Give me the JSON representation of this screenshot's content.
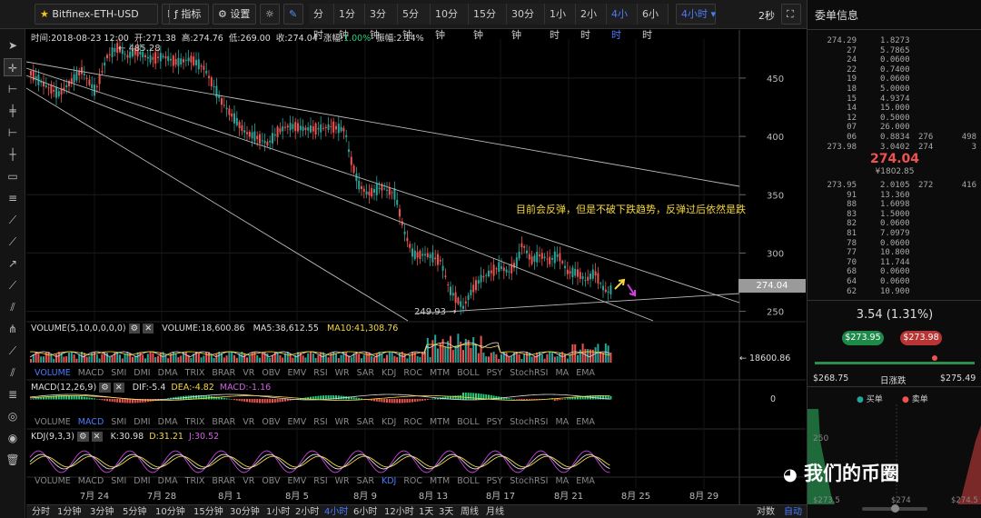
{
  "toolbar": {
    "symbol": "Bitfinex-ETH-USD",
    "indicators_label": "指标",
    "settings_label": "设置",
    "timeframes": [
      "分时",
      "1分钟",
      "3分钟",
      "5分钟",
      "10分钟",
      "15分钟",
      "30分钟",
      "1小时",
      "2小时",
      "4小时",
      "6小时"
    ],
    "active_timeframe": "4小时",
    "more_label": "4小时",
    "refresh_label": "2秒"
  },
  "info_line": {
    "time": "时间:2018-08-23 12:00",
    "open": "开:271.38",
    "high": "高:274.76",
    "low": "低:269.00",
    "close": "收:274.04",
    "change_label": "涨幅:",
    "change_value": "1.00%",
    "amplitude": "振幅:2.14%"
  },
  "chart_data": {
    "type": "candlestick",
    "y_ticks": [
      450,
      400,
      350,
      300,
      250
    ],
    "x_ticks": [
      "7月 24",
      "7月 28",
      "8月 1",
      "8月 5",
      "8月 9",
      "8月 13",
      "8月 17",
      "8月 21",
      "8月 25",
      "8月 29"
    ],
    "high_label": "485.28",
    "low_label": "249.93",
    "last_price_label": "274.04",
    "annotation": "目前会反弹，但是不破下跌趋势，反弹过后依然是跌"
  },
  "volume": {
    "title": "VOLUME(5,10,0,0,0,0)",
    "value": "VOLUME:18,600.86",
    "ma5": "MA5:38,612.55",
    "ma10": "MA10:41,308.76",
    "axis_label": "18600.86"
  },
  "tabs": {
    "items": [
      "VOLUME",
      "MACD",
      "SMI",
      "DMI",
      "DMA",
      "TRIX",
      "BRAR",
      "VR",
      "OBV",
      "EMV",
      "RSI",
      "WR",
      "SAR",
      "KDJ",
      "ROC",
      "MTM",
      "BOLL",
      "PSY",
      "StochRSI",
      "MA",
      "EMA"
    ],
    "active1": "VOLUME",
    "active2": "MACD",
    "active3": "KDJ"
  },
  "macd": {
    "title": "MACD(12,26,9)",
    "dif": "DIF:-5.4",
    "dea": "DEA:-4.82",
    "macd": "MACD:-1.16",
    "axis_label": "0"
  },
  "kdj": {
    "title": "KDJ(9,3,3)",
    "k": "K:30.98",
    "d": "D:31.21",
    "j": "J:30.52"
  },
  "bottom": {
    "timeframes": [
      "分时",
      "1分钟",
      "3分钟",
      "5分钟",
      "10分钟",
      "15分钟",
      "30分钟",
      "1小时",
      "2小时",
      "4小时",
      "6小时",
      "12小时",
      "1天",
      "3天",
      "周线",
      "月线"
    ],
    "active": "4小时",
    "log_label": "对数",
    "auto_label": "自动"
  },
  "orderbook": {
    "title": "委单信息",
    "asks": [
      [
        "274.29",
        "1.8273",
        "",
        ""
      ],
      [
        "27",
        "5.7865",
        "",
        ""
      ],
      [
        "24",
        "0.0600",
        "",
        ""
      ],
      [
        "22",
        "0.7400",
        "",
        ""
      ],
      [
        "19",
        "0.0600",
        "",
        ""
      ],
      [
        "18",
        "5.0000",
        "",
        ""
      ],
      [
        "15",
        "4.9374",
        "",
        ""
      ],
      [
        "14",
        "15.000",
        "",
        ""
      ],
      [
        "12",
        "0.5000",
        "",
        ""
      ],
      [
        "07",
        "26.000",
        "",
        ""
      ],
      [
        "06",
        "0.8834",
        "276",
        "498"
      ],
      [
        "273.98",
        "3.0402",
        "274",
        "3"
      ]
    ],
    "last_price": "274.04",
    "last_price_cny": "¥1802.85",
    "bids": [
      [
        "273.95",
        "2.0105",
        "272",
        "416"
      ],
      [
        "91",
        "13.360",
        "",
        ""
      ],
      [
        "88",
        "1.6098",
        "",
        ""
      ],
      [
        "83",
        "1.5000",
        "",
        ""
      ],
      [
        "82",
        "0.0600",
        "",
        ""
      ],
      [
        "81",
        "7.0979",
        "",
        ""
      ],
      [
        "78",
        "0.0600",
        "",
        ""
      ],
      [
        "77",
        "10.800",
        "",
        ""
      ],
      [
        "70",
        "11.744",
        "",
        ""
      ],
      [
        "68",
        "0.0600",
        "",
        ""
      ],
      [
        "64",
        "0.0600",
        "",
        ""
      ],
      [
        "62",
        "10.900",
        "",
        ""
      ]
    ],
    "change": "3.54 (1.31%)",
    "bid_button": "$273.95",
    "ask_button": "$273.98",
    "range_low": "$268.75",
    "range_label": "日涨跌",
    "range_high": "$275.49",
    "legend_buy": "买单",
    "legend_sell": "卖单",
    "depth_axis": "250",
    "depth_x": [
      "$273.5",
      "$274",
      "$274.5"
    ]
  },
  "watermark": "我们的币圈",
  "colors": {
    "up": "#26a69a",
    "down": "#ef5350",
    "accent": "#4a7cff"
  }
}
